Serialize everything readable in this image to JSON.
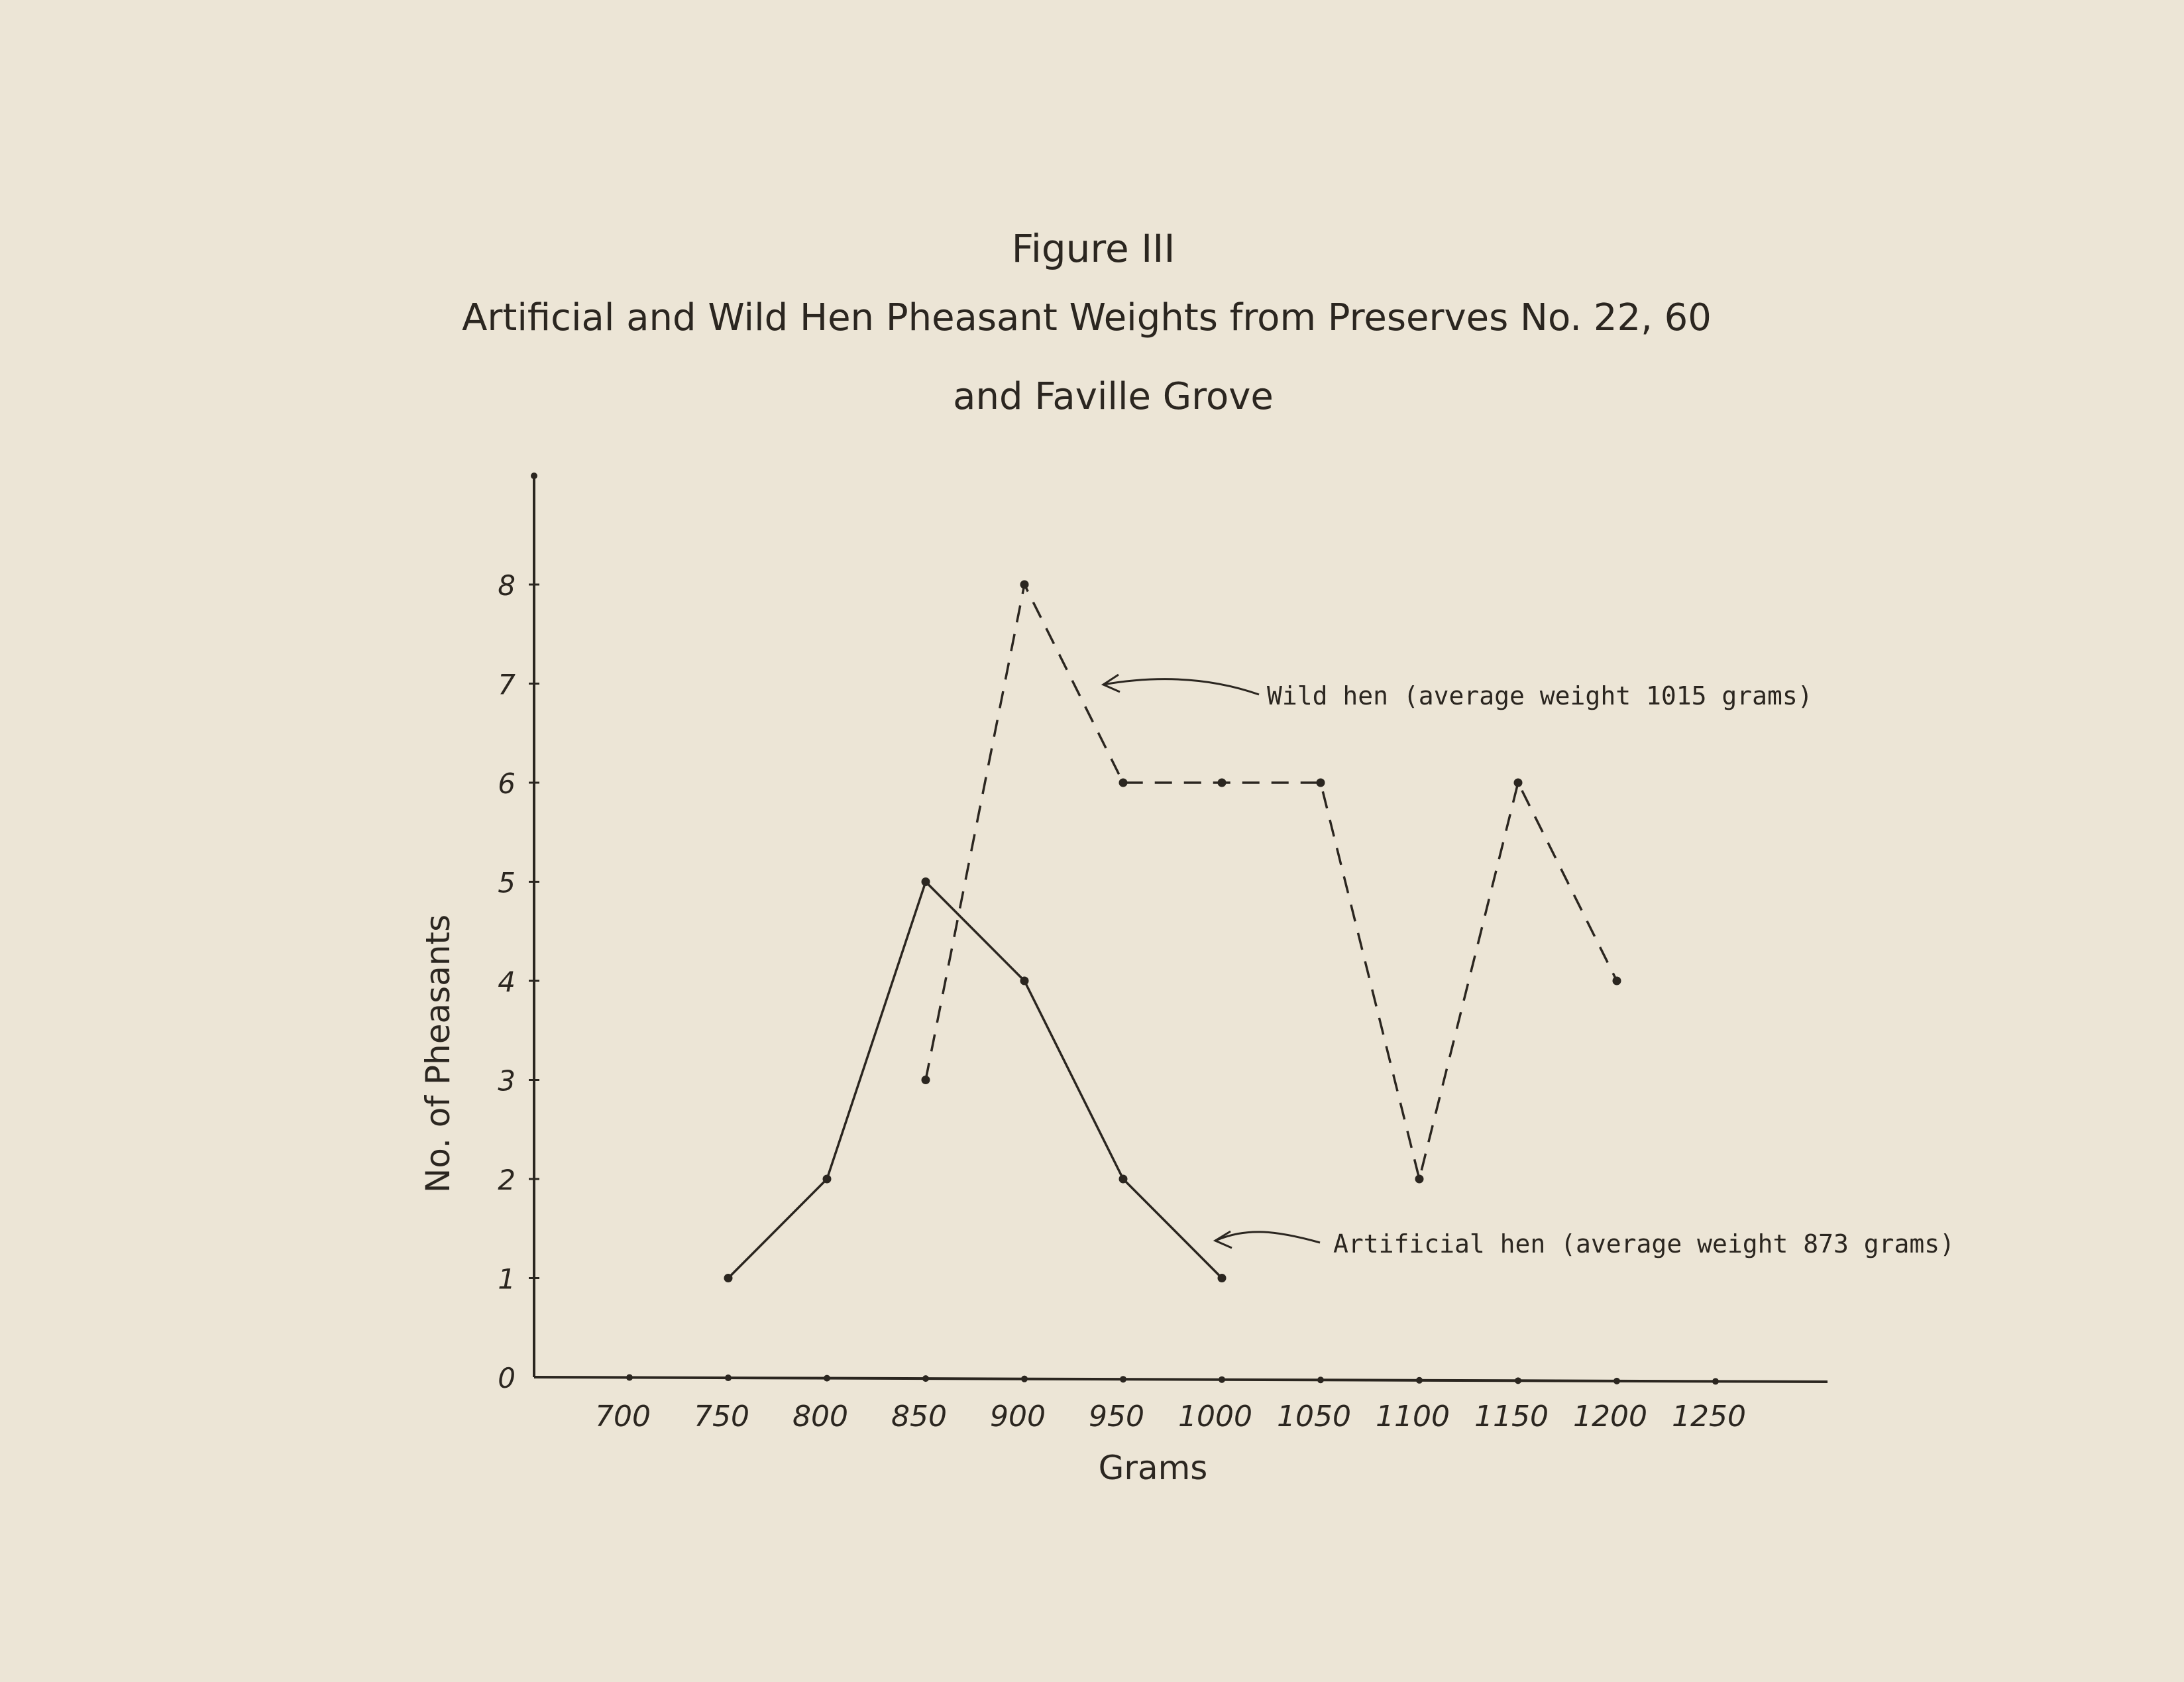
{
  "colors": {
    "paper": "#ece5d6",
    "ink": "#2b2620"
  },
  "chart_data": {
    "type": "line",
    "title": "Figure III",
    "subtitle_line1": "Artificial  and  Wild  Hen  Pheasant  Weights  from  Preserves No. 22,  60",
    "subtitle_line2": "and  Faville  Grove",
    "xlabel": "Grams",
    "ylabel": "No. of Pheasants",
    "x_ticks": [
      "700",
      "750",
      "800",
      "850",
      "900",
      "950",
      "1000",
      "1050",
      "1100",
      "1150",
      "1200",
      "1250"
    ],
    "y_ticks": [
      "0",
      "1",
      "2",
      "3",
      "4",
      "5",
      "6",
      "7",
      "8"
    ],
    "xlim": [
      650,
      1300
    ],
    "ylim": [
      0,
      9
    ],
    "grid": false,
    "series": [
      {
        "name": "Wild hen (average weight 1015 grams)",
        "style": "dashed",
        "x": [
          850,
          900,
          950,
          1000,
          1050,
          1100,
          1150,
          1200
        ],
        "y": [
          3,
          8,
          6,
          6,
          6,
          2,
          6,
          4
        ]
      },
      {
        "name": "Artificial hen (average weight 873 grams)",
        "style": "solid",
        "x": [
          750,
          800,
          850,
          900,
          950,
          1000
        ],
        "y": [
          1,
          2,
          5,
          4,
          2,
          1
        ]
      }
    ],
    "annotations": [
      "Wild hen (average weight 1015 grams)",
      "Artificial hen (average weight 873 grams)"
    ]
  }
}
